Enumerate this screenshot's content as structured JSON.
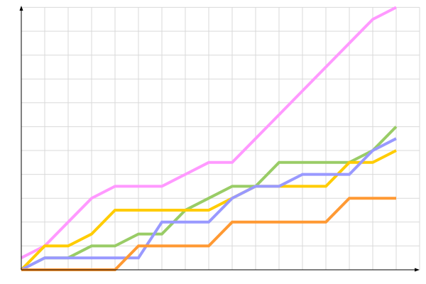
{
  "chart_data": {
    "type": "line",
    "title": "",
    "xlabel": "",
    "ylabel": "",
    "x": [
      0,
      1,
      2,
      3,
      4,
      5,
      6,
      7,
      8,
      9,
      10,
      11,
      12,
      13,
      14,
      15,
      16
    ],
    "xlim": [
      0,
      17
    ],
    "ylim": [
      0,
      11
    ],
    "grid": true,
    "legend": "none",
    "series": [
      {
        "color": "#ff99ff",
        "values": [
          0.5,
          1,
          2,
          3,
          3.5,
          3.5,
          3.5,
          4,
          4.5,
          4.5,
          5.5,
          6.5,
          7.5,
          8.5,
          9.5,
          10.5,
          11
        ]
      },
      {
        "color": "#99cc66",
        "values": [
          0,
          0.5,
          0.5,
          1,
          1,
          1.5,
          1.5,
          2.5,
          3,
          3.5,
          3.5,
          4.5,
          4.5,
          4.5,
          4.5,
          5,
          6
        ]
      },
      {
        "color": "#ffcc00",
        "values": [
          0,
          1,
          1,
          1.5,
          2.5,
          2.5,
          2.5,
          2.5,
          2.5,
          3,
          3.5,
          3.5,
          3.5,
          3.5,
          4.5,
          4.5,
          5
        ]
      },
      {
        "color": "#9999ff",
        "values": [
          0,
          0.5,
          0.5,
          0.5,
          0.5,
          0.5,
          2,
          2,
          2,
          3,
          3.5,
          3.5,
          4,
          4,
          4,
          5,
          5.5
        ]
      },
      {
        "color": "#ff9933",
        "values": [
          0,
          0,
          0,
          0,
          0,
          1,
          1,
          1,
          1,
          2,
          2,
          2,
          2,
          2,
          3,
          3,
          3
        ]
      }
    ]
  }
}
